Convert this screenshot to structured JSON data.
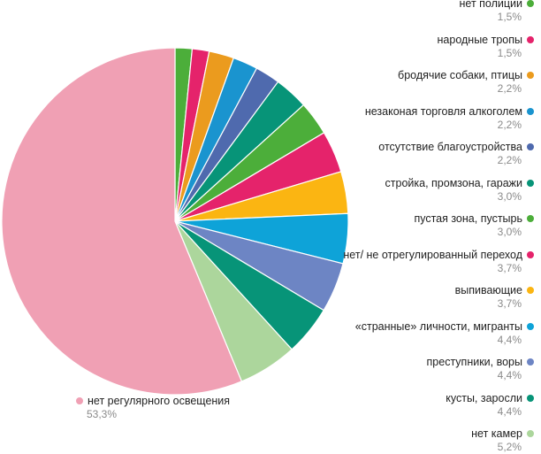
{
  "chart_data": {
    "type": "pie",
    "title": "",
    "slices": [
      {
        "label": "нет полиции",
        "value": 1.5,
        "display": "1,5%",
        "color": "#4cae3a"
      },
      {
        "label": "народные тропы",
        "value": 1.5,
        "display": "1,5%",
        "color": "#e5236b"
      },
      {
        "label": "бродячие собаки, птицы",
        "value": 2.2,
        "display": "2,2%",
        "color": "#eb9b1e"
      },
      {
        "label": "незаконая торговля алкоголем",
        "value": 2.2,
        "display": "2,2%",
        "color": "#1a94cf"
      },
      {
        "label": "отсутствие благоустройства",
        "value": 2.2,
        "display": "2,2%",
        "color": "#4f6aae"
      },
      {
        "label": "стройка, промзона, гаражи",
        "value": 3.0,
        "display": "3,0%",
        "color": "#079478"
      },
      {
        "label": "пустая зона, пустырь",
        "value": 3.0,
        "display": "3,0%",
        "color": "#4cae3a"
      },
      {
        "label": "нет/ не отрегулированный переход",
        "value": 3.7,
        "display": "3,7%",
        "color": "#e5236b"
      },
      {
        "label": "выпивающие",
        "value": 3.7,
        "display": "3,7%",
        "color": "#fbb512"
      },
      {
        "label": "«странные» личности, мигранты",
        "value": 4.4,
        "display": "4,4%",
        "color": "#0ea3d8"
      },
      {
        "label": "преступники, воры",
        "value": 4.4,
        "display": "4,4%",
        "color": "#6d85c4"
      },
      {
        "label": "кусты, заросли",
        "value": 4.4,
        "display": "4,4%",
        "color": "#079478"
      },
      {
        "label": "нет камер",
        "value": 5.2,
        "display": "5,2%",
        "color": "#acd69c"
      },
      {
        "label": "нет регулярного освещения",
        "value": 53.3,
        "display": "53,3%",
        "color": "#f0a0b4"
      }
    ],
    "legend_position": "right"
  }
}
